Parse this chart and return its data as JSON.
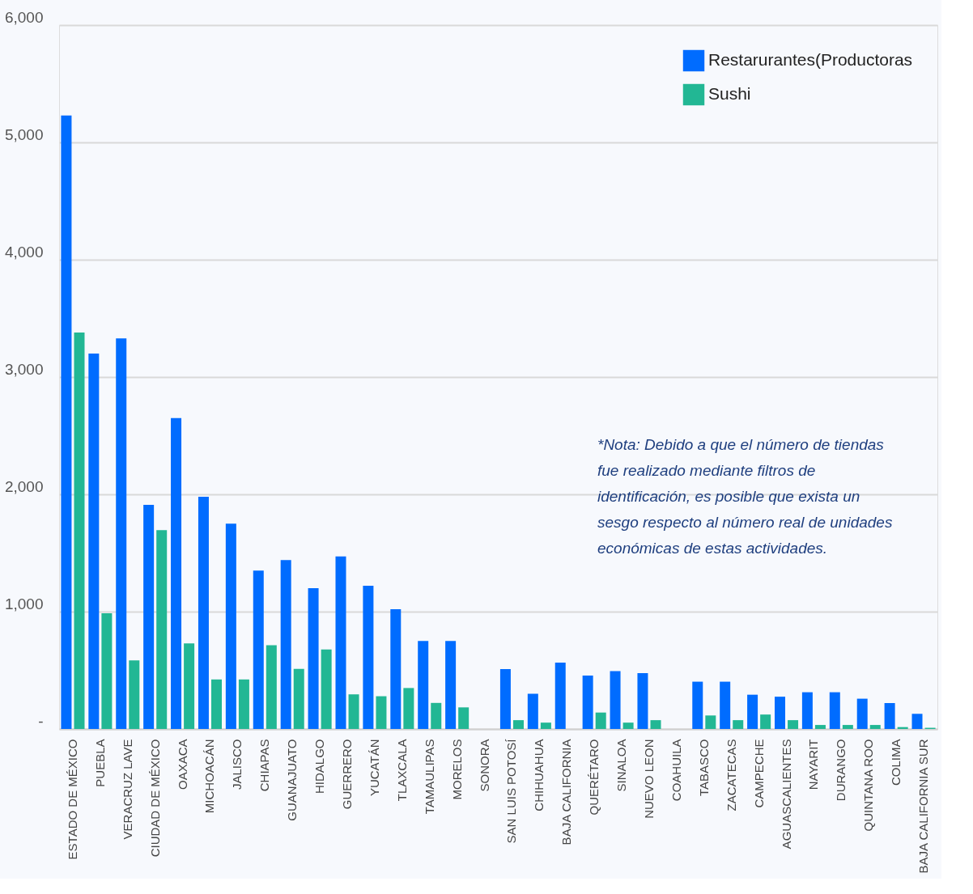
{
  "chart_data": {
    "type": "bar",
    "categories": [
      "ESTADO DE MÉXICO",
      "PUEBLA",
      "VERACRUZ LAVE",
      "CIUDAD DE MÉXICO",
      "OAXACA",
      "MICHOACÁN",
      "JALISCO",
      "CHIAPAS",
      "GUANAJUATO",
      "HIDALGO",
      "GUERRERO",
      "YUCATÁN",
      "TLAXCALA",
      "TAMAULIPAS",
      "MORELOS",
      "SONORA",
      "SAN LUIS POTOSÍ",
      "CHIHUAHUA",
      "BAJA CALIFORNIA",
      "QUERÉTARO",
      "SINALOA",
      "NUEVO LEON",
      "COAHUILA",
      "TABASCO",
      "ZACATECAS",
      "CAMPECHE",
      "AGUASCALIENTES",
      "NAYARIT",
      "DURANGO",
      "QUINTANA ROO",
      "COLIMA",
      "BAJA CALIFORNIA SUR"
    ],
    "series": [
      {
        "name": "Restarurantes(Productoras",
        "color": "#006cff",
        "values": [
          5230,
          3200,
          3330,
          1910,
          2650,
          1980,
          1750,
          1350,
          1440,
          1200,
          1470,
          1220,
          1020,
          750,
          750,
          null,
          510,
          300,
          565,
          456,
          493,
          476,
          null,
          403,
          403,
          292,
          275,
          313,
          313,
          258,
          220,
          129
        ]
      },
      {
        "name": " Sushi",
        "color": "#22b794",
        "values": [
          3380,
          986,
          585,
          1694,
          730,
          422,
          422,
          714,
          512,
          677,
          295,
          279,
          349,
          222,
          184,
          null,
          75,
          54,
          null,
          140,
          54,
          75,
          null,
          115,
          75,
          123,
          75,
          34,
          34,
          34,
          16,
          10
        ]
      }
    ],
    "ylim": [
      0,
      6000
    ],
    "yticks": [
      {
        "value": 0,
        "label": "-"
      },
      {
        "value": 1000,
        "label": "1,000"
      },
      {
        "value": 2000,
        "label": "2,000"
      },
      {
        "value": 3000,
        "label": "3,000"
      },
      {
        "value": 4000,
        "label": "4,000"
      },
      {
        "value": 5000,
        "label": "5,000"
      },
      {
        "value": 6000,
        "label": "6,000"
      }
    ],
    "grid": "y",
    "legend": "top right",
    "annotations": [
      "*Nota: Debido a que el número de tiendas fue realizado mediante filtros de identificación, es posible que exista un sesgo respecto al número real de unidades económicas de estas actividades."
    ]
  }
}
